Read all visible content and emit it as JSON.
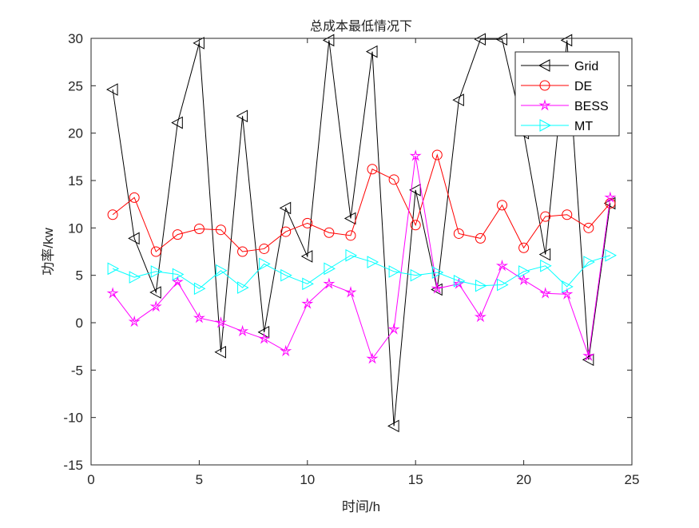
{
  "chart_data": {
    "type": "line",
    "title": "总成本最低情况下",
    "xlabel": "时间/h",
    "ylabel": "功率/kw",
    "xlim": [
      0,
      25
    ],
    "ylim": [
      -15,
      30
    ],
    "xticks": [
      0,
      5,
      10,
      15,
      20,
      25
    ],
    "yticks": [
      -15,
      -10,
      -5,
      0,
      5,
      10,
      15,
      20,
      25,
      30
    ],
    "grid": false,
    "legend_position": "top-right",
    "x": [
      1,
      2,
      3,
      4,
      5,
      6,
      7,
      8,
      9,
      10,
      11,
      12,
      13,
      14,
      15,
      16,
      17,
      18,
      19,
      20,
      21,
      22,
      23,
      24
    ],
    "series": [
      {
        "name": "Grid",
        "color": "#000000",
        "marker": "triangle-left",
        "values": [
          24.6,
          8.9,
          3.2,
          21.1,
          29.5,
          -3.1,
          21.8,
          -1.0,
          12.1,
          7.0,
          29.8,
          11.0,
          28.6,
          -10.9,
          14.0,
          3.5,
          23.5,
          29.9,
          29.9,
          20.0,
          7.2,
          29.8,
          -3.9,
          12.6
        ]
      },
      {
        "name": "DE",
        "color": "#ff0000",
        "marker": "circle",
        "values": [
          11.4,
          13.2,
          7.5,
          9.3,
          9.9,
          9.8,
          7.5,
          7.8,
          9.6,
          10.5,
          9.5,
          9.2,
          16.2,
          15.1,
          10.3,
          17.7,
          9.4,
          8.9,
          12.4,
          7.9,
          11.2,
          11.4,
          10.0,
          12.6
        ]
      },
      {
        "name": "BESS",
        "color": "#ff00ff",
        "marker": "star",
        "values": [
          3.1,
          0.1,
          1.7,
          4.3,
          0.5,
          0.0,
          -0.9,
          -1.7,
          -3.0,
          2.0,
          4.1,
          3.2,
          -3.8,
          -0.7,
          17.6,
          3.6,
          4.1,
          0.6,
          6.0,
          4.5,
          3.1,
          3.0,
          -3.5,
          13.2
        ]
      },
      {
        "name": "MT",
        "color": "#00ffff",
        "marker": "triangle-right",
        "values": [
          5.7,
          4.8,
          5.4,
          5.1,
          3.6,
          5.5,
          3.7,
          6.2,
          5.0,
          4.1,
          5.7,
          7.1,
          6.4,
          5.4,
          5.0,
          5.3,
          4.4,
          3.9,
          4.0,
          5.4,
          6.0,
          3.8,
          6.4,
          7.1
        ]
      }
    ]
  }
}
